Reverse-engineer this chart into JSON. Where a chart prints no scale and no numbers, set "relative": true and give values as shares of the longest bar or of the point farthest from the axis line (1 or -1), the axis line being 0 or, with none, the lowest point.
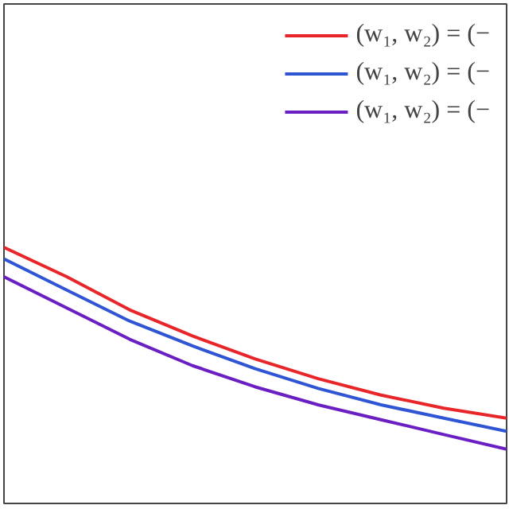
{
  "chart_data": {
    "type": "line",
    "relative": true,
    "tick_labels": false,
    "legend": "top right",
    "grid": false,
    "line_style": "solid",
    "categories": [
      null,
      null,
      null,
      null,
      null,
      null,
      null,
      null,
      null
    ],
    "series": [
      {
        "name": "(w₁, w₂) = (−",
        "color": "#e8262a",
        "values": [
          1.0,
          0.885,
          0.756,
          0.654,
          0.564,
          0.487,
          0.423,
          0.372,
          0.333
        ]
      },
      {
        "name": "(w₁, w₂) = (−",
        "color": "#2f55d4",
        "values": [
          0.955,
          0.833,
          0.712,
          0.615,
          0.526,
          0.449,
          0.385,
          0.333,
          0.282
        ]
      },
      {
        "name": "(w₁, w₂) = (−",
        "color": "#6a1fc2",
        "values": [
          0.885,
          0.763,
          0.641,
          0.538,
          0.455,
          0.385,
          0.327,
          0.269,
          0.212
        ]
      }
    ]
  }
}
